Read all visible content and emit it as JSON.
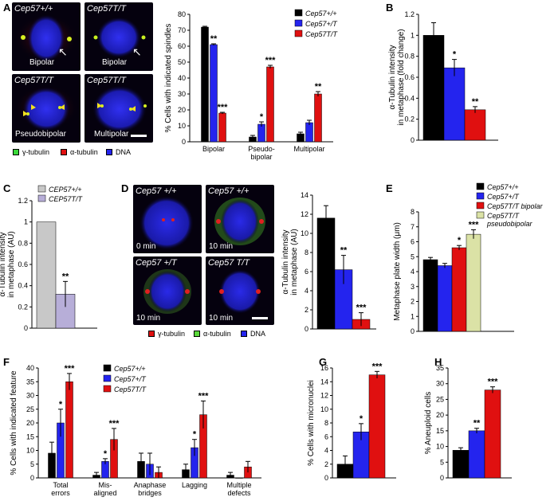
{
  "panel_letters": [
    "A",
    "B",
    "C",
    "D",
    "E",
    "F",
    "G",
    "H"
  ],
  "panel_a_images": [
    {
      "genotype": "Cep57+/+",
      "label": "Bipolar"
    },
    {
      "genotype": "Cep57T/T",
      "label": "Bipolar"
    },
    {
      "genotype": "Cep57T/T",
      "label": "Pseudobipolar"
    },
    {
      "genotype": "Cep57T/T",
      "label": "Multipolar"
    }
  ],
  "panel_a_key": [
    "γ-tubulin",
    "α-tubulin",
    "DNA"
  ],
  "panel_d_images": [
    {
      "genotype": "Cep57 +/+",
      "time": "0 min"
    },
    {
      "genotype": "Cep57 +/+",
      "time": "10 min"
    },
    {
      "genotype": "Cep57 +/T",
      "time": "10 min"
    },
    {
      "genotype": "Cep57 T/T",
      "time": "10 min"
    }
  ],
  "panel_d_key": [
    "γ-tubulin",
    "α-tubulin",
    "DNA"
  ],
  "colors": {
    "black": "#000000",
    "blue": "#2424ee",
    "red": "#e01010",
    "gray": "#c8c8c8",
    "lavender": "#b7aed8",
    "khaki": "#dbe2a6"
  },
  "chart_data": [
    {
      "id": "A",
      "type": "bar",
      "ylabel": "% Cells with indicated spindles",
      "categories": [
        "Bipolar",
        "Pseudo-\nbipolar",
        "Multipolar"
      ],
      "ylim": [
        0,
        80
      ],
      "yticks": [
        0,
        10,
        20,
        30,
        40,
        50,
        60,
        70,
        80
      ],
      "legend": {
        "position": "top-right"
      },
      "series": [
        {
          "name": "Cep57+/+",
          "color": "#000000",
          "values": [
            72,
            3,
            5
          ],
          "err": [
            0.5,
            1,
            1
          ],
          "sig": [
            "",
            "",
            ""
          ]
        },
        {
          "name": "Cep57+/T",
          "color": "#2424ee",
          "values": [
            61,
            11,
            12
          ],
          "err": [
            0.5,
            1.5,
            1.5
          ],
          "sig": [
            "**",
            "*",
            ""
          ]
        },
        {
          "name": "Cep57T/T",
          "color": "#e01010",
          "values": [
            18,
            47,
            30
          ],
          "err": [
            0.5,
            1,
            1.5
          ],
          "sig": [
            "***",
            "***",
            "**"
          ]
        }
      ]
    },
    {
      "id": "B",
      "type": "bar",
      "ylabel": "α-Tubulin intensity\nin metaphase (fold change)",
      "categories": [
        "",
        "",
        ""
      ],
      "ylim": [
        0,
        1.2
      ],
      "yticks": [
        0,
        0.2,
        0.4,
        0.6,
        0.8,
        1,
        1.2
      ],
      "series": [
        {
          "values": [
            1.0,
            0.69,
            0.29
          ],
          "err": [
            0.12,
            0.08,
            0.03
          ],
          "colors": [
            "#000000",
            "#2424ee",
            "#e01010"
          ],
          "sig": [
            "",
            "*",
            "**"
          ]
        }
      ]
    },
    {
      "id": "C",
      "type": "bar",
      "ylabel": "α-Tubulin intensity\nin metaphase (AU)",
      "categories": [
        "",
        ""
      ],
      "ylim": [
        0,
        1.2
      ],
      "yticks": [
        0,
        0.2,
        0.4,
        0.6,
        0.8,
        1,
        1.2
      ],
      "legend": {
        "position": "top",
        "entries": [
          "CEP57+/+",
          "CEP57T/T"
        ]
      },
      "series": [
        {
          "values": [
            1.0,
            0.32
          ],
          "err": [
            0,
            0.12
          ],
          "colors": [
            "#c8c8c8",
            "#b7aed8"
          ],
          "sig": [
            "",
            "**"
          ]
        }
      ]
    },
    {
      "id": "D",
      "type": "bar",
      "ylabel": "α-Tubulin intensity\nin metaphase (AU)",
      "categories": [
        "",
        "",
        ""
      ],
      "ylim": [
        0,
        14
      ],
      "yticks": [
        0,
        2,
        4,
        6,
        8,
        10,
        12,
        14
      ],
      "series": [
        {
          "values": [
            11.6,
            6.2,
            1.0
          ],
          "err": [
            1.3,
            1.5,
            0.7
          ],
          "colors": [
            "#000000",
            "#2424ee",
            "#e01010"
          ],
          "sig": [
            "",
            "**",
            "***"
          ]
        }
      ]
    },
    {
      "id": "E",
      "type": "bar",
      "ylabel": "Metaphase plate width (μm)",
      "categories": [
        "",
        "",
        "",
        ""
      ],
      "ylim": [
        0,
        8
      ],
      "yticks": [
        0,
        1,
        2,
        3,
        4,
        5,
        6,
        7,
        8
      ],
      "legend": {
        "position": "top",
        "entries": [
          "Cep57+/+",
          "Cep57+/T",
          "Cep57T/T bipolar",
          "Cep57T/T\npseudobipolar"
        ]
      },
      "series": [
        {
          "values": [
            4.8,
            4.4,
            5.6,
            6.5
          ],
          "err": [
            0.15,
            0.15,
            0.15,
            0.3
          ],
          "colors": [
            "#000000",
            "#2424ee",
            "#e01010",
            "#dbe2a6"
          ],
          "sig": [
            "",
            "",
            "*",
            "***"
          ]
        }
      ]
    },
    {
      "id": "F",
      "type": "bar",
      "ylabel": "% Cells with indicated feature",
      "categories": [
        "Total\nerrors",
        "Mis-\naligned",
        "Anaphase\nbridges",
        "Lagging",
        "Multiple\ndefects"
      ],
      "ylim": [
        0,
        40
      ],
      "yticks": [
        0,
        5,
        10,
        15,
        20,
        25,
        30,
        35,
        40
      ],
      "legend": {
        "position": "top-center"
      },
      "series": [
        {
          "name": "Cep57+/+",
          "color": "#000000",
          "values": [
            9,
            1,
            6,
            3,
            1
          ],
          "err": [
            4,
            1,
            3,
            2,
            1
          ],
          "sig": [
            "",
            "",
            "",
            "",
            ""
          ]
        },
        {
          "name": "Cep57+/T",
          "color": "#2424ee",
          "values": [
            20,
            6,
            5,
            11,
            0
          ],
          "err": [
            5,
            1,
            4,
            3,
            0
          ],
          "sig": [
            "*",
            "*",
            "",
            "*",
            ""
          ]
        },
        {
          "name": "Cep57T/T",
          "color": "#e01010",
          "values": [
            35,
            14,
            2,
            23,
            4
          ],
          "err": [
            3,
            4,
            2,
            5,
            2
          ],
          "sig": [
            "***",
            "***",
            "",
            "***",
            ""
          ]
        }
      ]
    },
    {
      "id": "G",
      "type": "bar",
      "ylabel": "% Cells with micronuclei",
      "categories": [
        "",
        "",
        ""
      ],
      "ylim": [
        0,
        16
      ],
      "yticks": [
        0,
        2,
        4,
        6,
        8,
        10,
        12,
        14,
        16
      ],
      "series": [
        {
          "values": [
            2,
            6.7,
            15
          ],
          "err": [
            1.2,
            1.2,
            0.5
          ],
          "colors": [
            "#000000",
            "#2424ee",
            "#e01010"
          ],
          "sig": [
            "",
            "*",
            "***"
          ]
        }
      ]
    },
    {
      "id": "H",
      "type": "bar",
      "ylabel": "% Aneuploid cells",
      "categories": [
        "",
        "",
        ""
      ],
      "ylim": [
        0,
        35
      ],
      "yticks": [
        0,
        5,
        10,
        15,
        20,
        25,
        30,
        35
      ],
      "series": [
        {
          "values": [
            8.8,
            15,
            28
          ],
          "err": [
            0.8,
            0.8,
            1.0
          ],
          "colors": [
            "#000000",
            "#2424ee",
            "#e01010"
          ],
          "sig": [
            "",
            "**",
            "***"
          ]
        }
      ]
    }
  ]
}
